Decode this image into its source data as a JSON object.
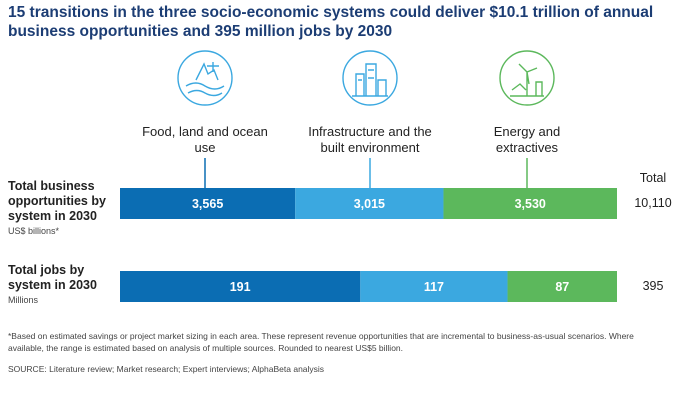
{
  "title": "15 transitions in the three socio-economic systems could deliver $10.1 trillion of annual business opportunities and 395 million jobs by 2030",
  "systems": [
    {
      "name": "Food, land and ocean use",
      "color": "#0b6db3"
    },
    {
      "name": "Infrastructure and the built environment",
      "color": "#3ba8e0"
    },
    {
      "name": "Energy and extractives",
      "color": "#5cb85c"
    }
  ],
  "total_header": "Total",
  "rows": [
    {
      "label": "Total business opportunities by system in 2030",
      "unit": "US$ billions*",
      "values": [
        3565,
        3015,
        3530
      ],
      "value_labels": [
        "3,565",
        "3,015",
        "3,530"
      ],
      "total": 10110,
      "total_label": "10,110"
    },
    {
      "label": "Total jobs by system in 2030",
      "unit": "Millions",
      "values": [
        191,
        117,
        87
      ],
      "total": 395
    }
  ],
  "footnote": "*Based on estimated savings or project market sizing in each area. These represent revenue opportunities that are incremental to business-as-usual scenarios. Where available, the range is estimated based on analysis of multiple sources. Rounded to nearest US$5 billion.",
  "source": "SOURCE: Literature review; Market research; Expert interviews; AlphaBeta analysis"
}
